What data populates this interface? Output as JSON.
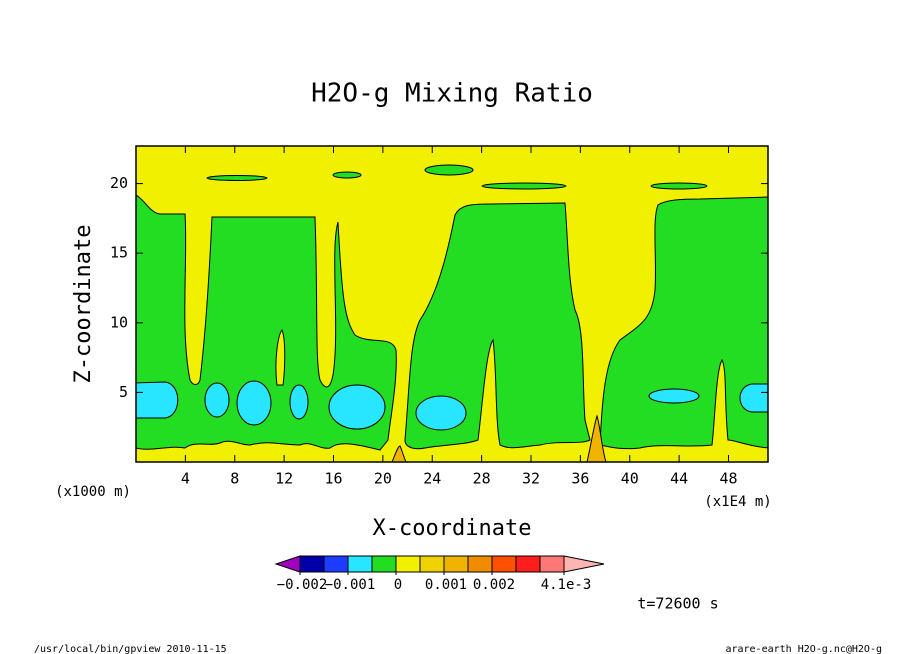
{
  "chart_data": {
    "type": "contour",
    "title": "H2O-g Mixing Ratio",
    "xlabel": "X-coordinate",
    "ylabel": "Z-coordinate",
    "x_unit": "(x1E4 m)",
    "y_unit": "(x1000 m)",
    "xlim": [
      0,
      51.2
    ],
    "ylim": [
      0,
      22.7
    ],
    "xticks": [
      4,
      8,
      12,
      16,
      20,
      24,
      28,
      32,
      36,
      40,
      44,
      48
    ],
    "yticks": [
      5,
      10,
      15,
      20
    ],
    "colorbar": {
      "levels": [
        -0.002,
        -0.0015,
        -0.001,
        -0.0005,
        0,
        0.0005,
        0.001,
        0.0015,
        0.002,
        0.0025,
        0.003,
        0.0041
      ],
      "colors": [
        "#0000a8",
        "#1e3cff",
        "#28e6ff",
        "#22dd22",
        "#f0f000",
        "#f0d200",
        "#f0b400",
        "#f08c00",
        "#ff5000",
        "#ff1e1e",
        "#ff7878"
      ],
      "under_color": "#a000c0",
      "over_color": "#ffb4b4",
      "ticks": [
        {
          "value": -0.002,
          "label": "−0.002"
        },
        {
          "value": -0.001,
          "label": "−0.001"
        },
        0,
        {
          "value": 0.001,
          "label": "0.001"
        },
        {
          "value": 0.002,
          "label": "0.002"
        },
        {
          "value": 0.0041,
          "label": "4.1e-3"
        }
      ]
    },
    "time_label": "t=72600 s",
    "footer_left": "/usr/local/bin/gpview  2010-11-15",
    "footer_right": "arare-earth_H2O-g.nc@H2O-g"
  }
}
